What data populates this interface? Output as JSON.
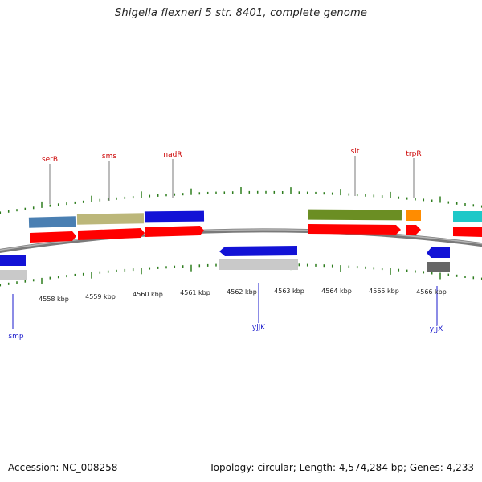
{
  "title": "Shigella flexneri 5 str. 8401, complete genome",
  "footer": {
    "accession": "Accession: NC_008258",
    "summary": "Topology: circular; Length: 4,574,284 bp; Genes: 4,233"
  },
  "colors": {
    "backbone": "#8a8a8a",
    "tick": "#2e7d1e",
    "forward_label": "#cc0000",
    "reverse_label": "#1a1acc",
    "cds_forward": "#ff0000",
    "cds_reverse": "#cccccc"
  },
  "scale_labels": [
    "4558 kbp",
    "4559 kbp",
    "4560 kbp",
    "4561 kbp",
    "4562 kbp",
    "4563 kbp",
    "4564 kbp",
    "4565 kbp",
    "4566 kbp"
  ],
  "genes": [
    {
      "name": "serB",
      "strand": "+"
    },
    {
      "name": "sms",
      "strand": "+"
    },
    {
      "name": "nadR",
      "strand": "+"
    },
    {
      "name": "slt",
      "strand": "+"
    },
    {
      "name": "trpR",
      "strand": "+"
    },
    {
      "name": "smp",
      "strand": "-"
    },
    {
      "name": "yjjK",
      "strand": "-"
    },
    {
      "name": "yjjX",
      "strand": "-"
    }
  ]
}
